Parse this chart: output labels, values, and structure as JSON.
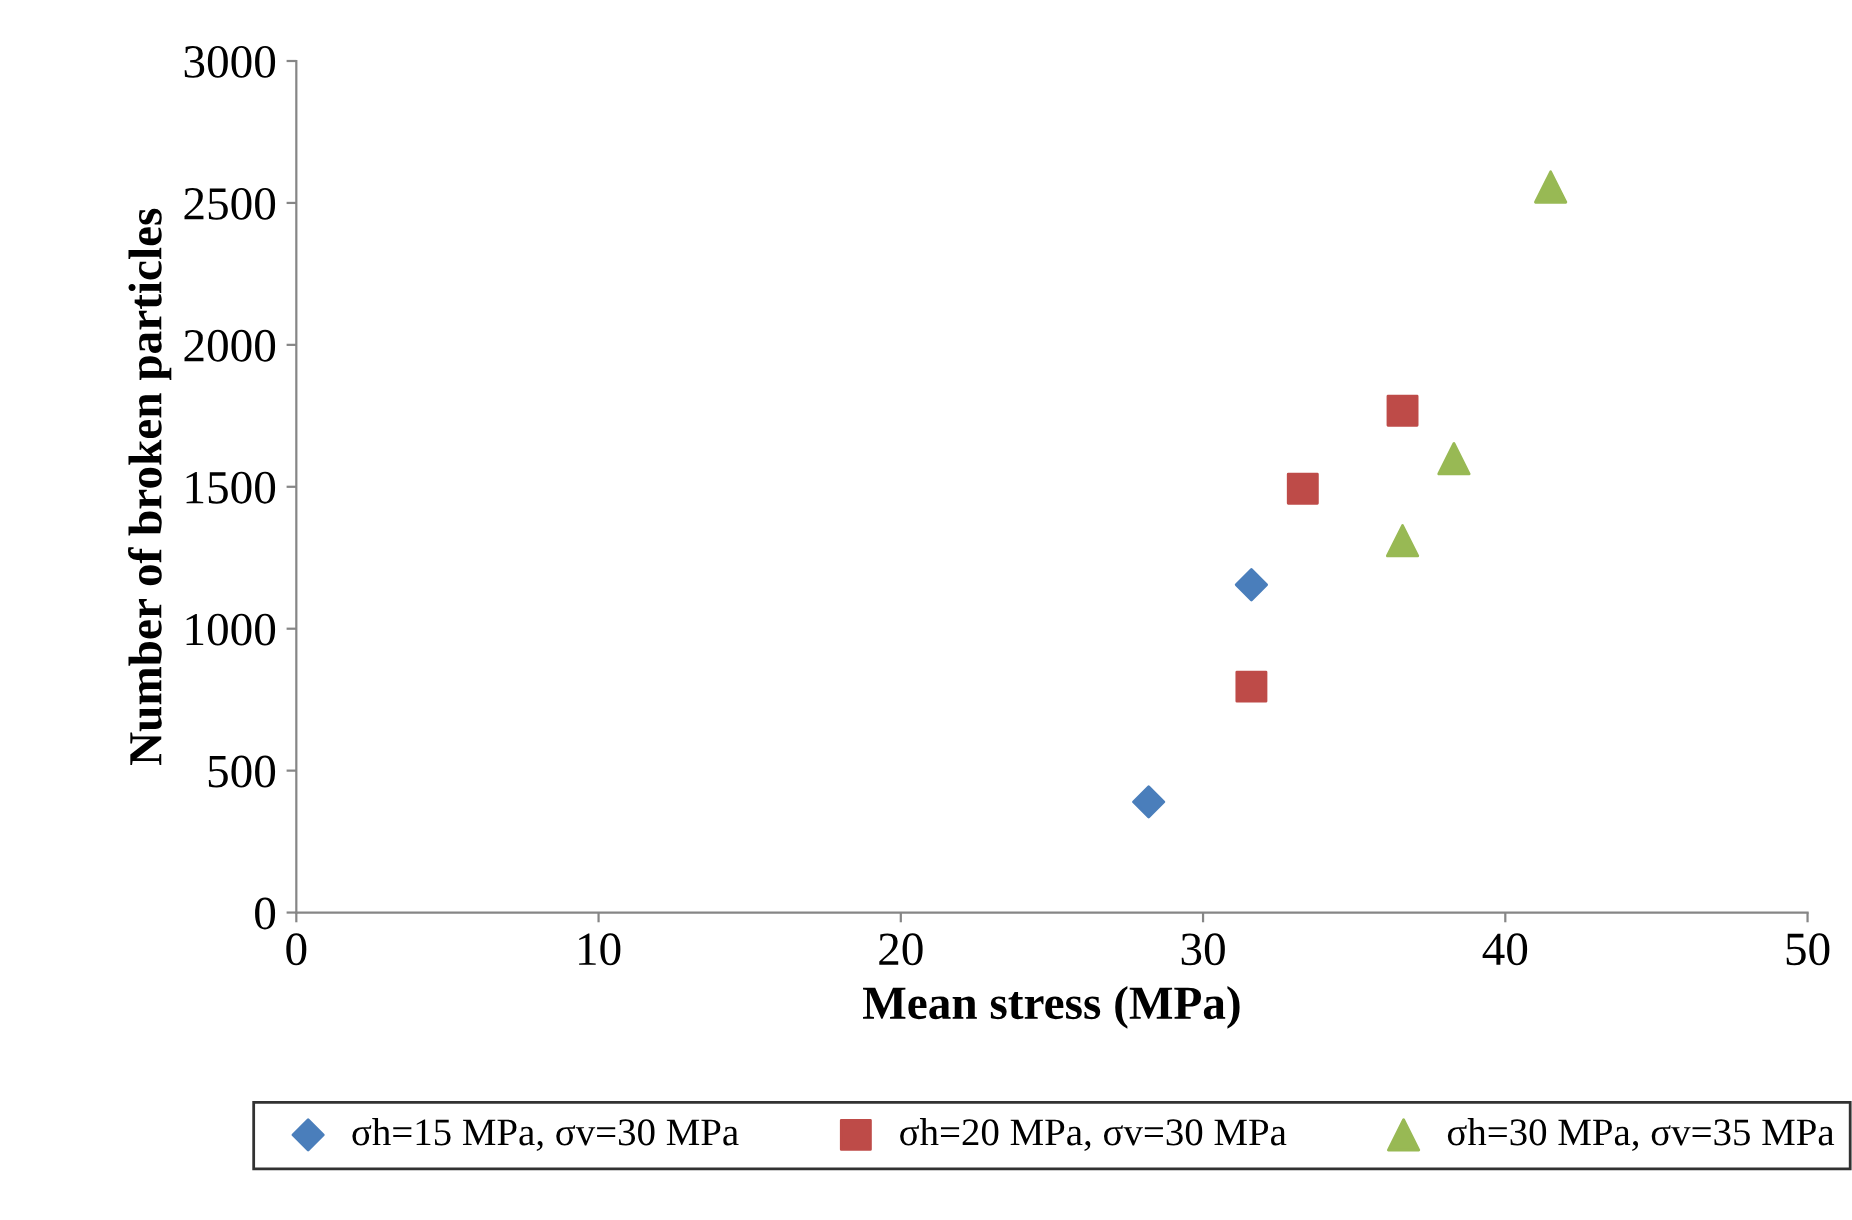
{
  "chart_data": {
    "type": "scatter",
    "xlabel": "Mean stress (MPa)",
    "ylabel": "Number of broken particles",
    "xlim": [
      0,
      50
    ],
    "xticks": [
      0,
      10,
      20,
      30,
      40,
      50
    ],
    "ylim": [
      0,
      3000
    ],
    "yticks": [
      0,
      500,
      1000,
      1500,
      2000,
      2500,
      3000
    ],
    "grid": false,
    "legend": "bottom",
    "series": [
      {
        "name": "σh=15 MPa, σv=30 MPa",
        "color": "#4a7ebb",
        "marker": "diamond",
        "x": [
          28.2,
          31.6
        ],
        "values": [
          390,
          1155
        ]
      },
      {
        "name": "σh=20 MPa, σv=30 MPa",
        "color": "#be4b48",
        "marker": "square",
        "x": [
          31.6,
          33.3,
          36.6
        ],
        "values": [
          796,
          1493,
          1768
        ]
      },
      {
        "name": "σh=30 MPa, σv=35 MPa",
        "color": "#98b954",
        "marker": "triangle",
        "x": [
          36.6,
          38.3,
          41.5
        ],
        "values": [
          1310,
          1599,
          2556
        ]
      }
    ]
  }
}
